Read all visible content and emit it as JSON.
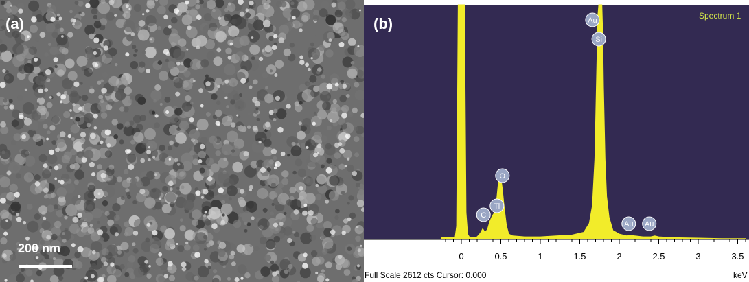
{
  "panel_a": {
    "label": "(a)",
    "scale_bar_label": "200 nm"
  },
  "panel_b": {
    "label": "(b)",
    "spectrum_name": "Spectrum 1",
    "footer": "Full Scale 2612 cts Cursor: 0.000",
    "x_unit": "keV"
  },
  "colors": {
    "plot_background": "#332a52",
    "spectrum_fill": "#f2ec2a",
    "spectrum_label": "#d6e84a",
    "marker_fill": "#9aa6c4",
    "sem_base": "#6e6e6e"
  },
  "chart_data": {
    "type": "area",
    "title": "Spectrum 1",
    "xlabel": "keV",
    "ylabel": "",
    "xlim": [
      -0.25,
      3.6
    ],
    "ylim": [
      0,
      2612
    ],
    "x_ticks": [
      "0",
      "0.5",
      "1",
      "1.5",
      "2",
      "2.5",
      "3",
      "3.5"
    ],
    "grid": false,
    "series": [
      {
        "name": "Spectrum 1",
        "x": [
          -0.25,
          -0.08,
          -0.06,
          -0.04,
          -0.02,
          0.0,
          0.02,
          0.04,
          0.06,
          0.08,
          0.1,
          0.15,
          0.2,
          0.24,
          0.27,
          0.3,
          0.33,
          0.36,
          0.39,
          0.42,
          0.45,
          0.47,
          0.5,
          0.52,
          0.54,
          0.57,
          0.6,
          0.65,
          0.8,
          1.0,
          1.2,
          1.4,
          1.55,
          1.62,
          1.66,
          1.69,
          1.71,
          1.73,
          1.74,
          1.75,
          1.76,
          1.77,
          1.78,
          1.79,
          1.8,
          1.82,
          1.84,
          1.87,
          1.92,
          2.0,
          2.1,
          2.15,
          2.2,
          2.3,
          2.4,
          2.45,
          2.5,
          2.7,
          3.0,
          3.3,
          3.6
        ],
        "y": [
          20,
          20,
          150,
          2612,
          2612,
          2612,
          2612,
          2612,
          300,
          60,
          30,
          20,
          30,
          70,
          120,
          80,
          110,
          200,
          260,
          300,
          470,
          650,
          690,
          560,
          380,
          160,
          60,
          40,
          30,
          30,
          40,
          50,
          80,
          180,
          380,
          900,
          1700,
          2500,
          2612,
          2612,
          2612,
          2612,
          2612,
          2300,
          1700,
          900,
          480,
          250,
          100,
          60,
          40,
          50,
          40,
          30,
          30,
          40,
          30,
          20,
          15,
          10,
          10
        ]
      }
    ],
    "peak_labels": [
      {
        "label": "C",
        "energy": 0.28
      },
      {
        "label": "Ti",
        "energy": 0.45
      },
      {
        "label": "O",
        "energy": 0.52
      },
      {
        "label": "Au",
        "energy": 1.66
      },
      {
        "label": "Si",
        "energy": 1.74
      },
      {
        "label": "Au",
        "energy": 2.12
      },
      {
        "label": "Au",
        "energy": 2.38
      }
    ]
  }
}
